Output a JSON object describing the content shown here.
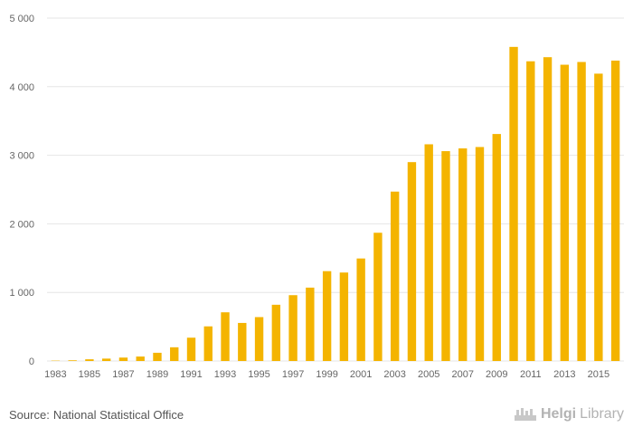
{
  "chart_data": {
    "type": "bar",
    "title": "",
    "xlabel": "",
    "ylabel": "",
    "ylim": [
      0,
      5000
    ],
    "yticks": [
      0,
      1000,
      2000,
      3000,
      4000,
      5000
    ],
    "ytick_labels": [
      "0",
      "1 000",
      "2 000",
      "3 000",
      "4 000",
      "5 000"
    ],
    "categories": [
      "1983",
      "1984",
      "1985",
      "1986",
      "1987",
      "1988",
      "1989",
      "1990",
      "1991",
      "1992",
      "1993",
      "1994",
      "1995",
      "1996",
      "1997",
      "1998",
      "1999",
      "2000",
      "2001",
      "2002",
      "2003",
      "2004",
      "2005",
      "2006",
      "2007",
      "2008",
      "2009",
      "2010",
      "2011",
      "2012",
      "2013",
      "2014",
      "2015",
      "2016"
    ],
    "xtick_labels": [
      "1983",
      "1985",
      "1987",
      "1989",
      "1991",
      "1993",
      "1995",
      "1997",
      "1999",
      "2001",
      "2003",
      "2005",
      "2007",
      "2009",
      "2011",
      "2013",
      "2015"
    ],
    "values": [
      5,
      10,
      25,
      35,
      50,
      65,
      120,
      200,
      340,
      505,
      710,
      555,
      640,
      820,
      960,
      1070,
      1310,
      1290,
      1495,
      1870,
      2470,
      2900,
      3160,
      3060,
      3100,
      3120,
      3310,
      4580,
      4370,
      4430,
      4320,
      4360,
      4190,
      4380
    ],
    "bar_color": "#f4b400",
    "grid": true
  },
  "footer": {
    "source_prefix": "Source:",
    "source_name": "National Statistical Office"
  },
  "brand": {
    "icon": "helgi-library-logo-icon",
    "part1": "Helgi",
    "part2": "Library",
    "color": "#b3b3b3"
  }
}
